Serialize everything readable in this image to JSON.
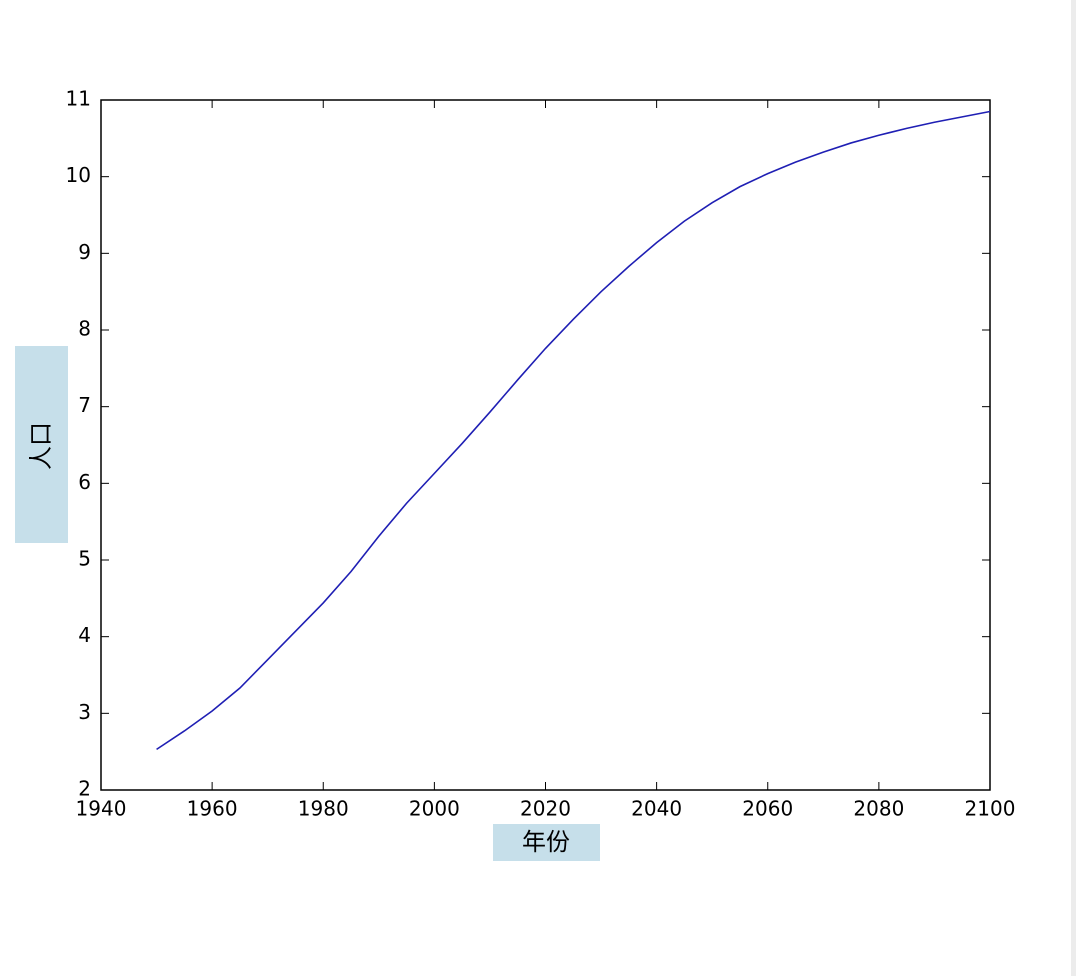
{
  "chart_data": {
    "type": "line",
    "xlabel": "年份",
    "ylabel": "人口",
    "x": [
      1950,
      1955,
      1960,
      1965,
      1970,
      1975,
      1980,
      1985,
      1990,
      1995,
      2000,
      2005,
      2010,
      2015,
      2020,
      2025,
      2030,
      2035,
      2040,
      2045,
      2050,
      2055,
      2060,
      2065,
      2070,
      2075,
      2080,
      2085,
      2090,
      2095,
      2100
    ],
    "values": [
      2.53,
      2.77,
      3.03,
      3.33,
      3.7,
      4.07,
      4.44,
      4.85,
      5.31,
      5.74,
      6.13,
      6.52,
      6.93,
      7.35,
      7.76,
      8.14,
      8.5,
      8.83,
      9.14,
      9.42,
      9.66,
      9.87,
      10.04,
      10.19,
      10.32,
      10.44,
      10.54,
      10.63,
      10.71,
      10.78,
      10.85
    ],
    "color": "#1f1fb4",
    "xlim": [
      1940,
      2100
    ],
    "xticks": [
      1940,
      1960,
      1980,
      2000,
      2020,
      2040,
      2060,
      2080,
      2100
    ],
    "ylim": [
      2,
      11
    ],
    "yticks": [
      2,
      3,
      4,
      5,
      6,
      7,
      8,
      9,
      10,
      11
    ],
    "grid": false
  }
}
